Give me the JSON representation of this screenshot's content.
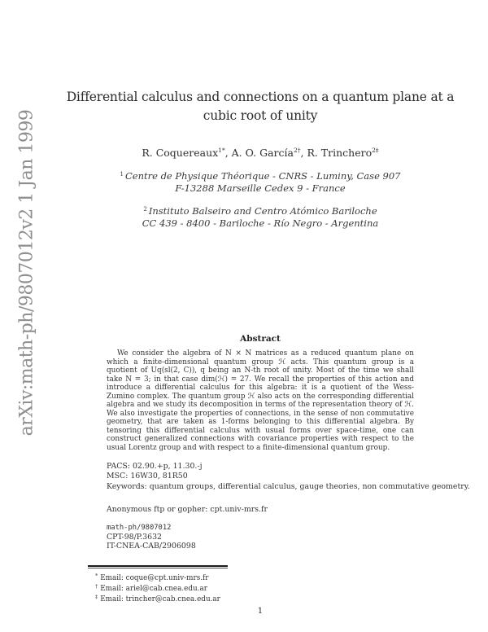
{
  "watermark": {
    "text": "arXiv:math-ph/9807012v2  1 Jan 1999",
    "color": "#8e8e8e"
  },
  "title": {
    "line1": "Differential calculus and connections on a quantum plane at a",
    "line2": "cubic root of unity"
  },
  "authors_sep": ", ",
  "authors": [
    {
      "name": "R. Coquereaux",
      "sup": "1*"
    },
    {
      "name": "A. O. García",
      "sup": "2†"
    },
    {
      "name": "R. Trinchero",
      "sup": "2‡"
    }
  ],
  "affiliations": [
    {
      "sup": "1",
      "line1": "Centre de Physique Théorique - CNRS - Luminy, Case 907",
      "line2": "F-13288 Marseille Cedex 9 - France"
    },
    {
      "sup": "2",
      "line1": "Instituto Balseiro and Centro Atómico Bariloche",
      "line2": "CC 439 - 8400 - Bariloche - Río Negro - Argentina"
    }
  ],
  "abstract": {
    "heading": "Abstract",
    "text": "We consider the algebra of N × N matrices as a reduced quantum plane on which a finite-dimensional quantum group ℋ acts. This quantum group is a quotient of Uq(sl(2, C)), q being an N-th root of unity. Most of the time we shall take N = 3; in that case dim(ℋ) = 27. We recall the properties of this action and introduce a differential calculus for this algebra: it is a quotient of the Wess-Zumino complex. The quantum group ℋ also acts on the corresponding differential algebra and we study its decomposition in terms of the representation theory of ℋ. We also investigate the properties of connections, in the sense of non commutative geometry, that are taken as 1-forms belonging to this differential algebra. By tensoring this differential calculus with usual forms over space-time, one can construct generalized connections with covariance properties with respect to the usual Lorentz group and with respect to a finite-dimensional quantum group."
  },
  "meta": {
    "pacs": "PACS: 02.90.+p, 11.30.-j",
    "msc": "MSC: 16W30, 81R50",
    "keywords": "Keywords: quantum groups, differential calculus, gauge theories, non commutative geometry."
  },
  "ftp_line": "Anonymous ftp or gopher: cpt.univ-mrs.fr",
  "report_numbers": [
    "math-ph/9807012",
    "CPT-98/P.3632",
    "IT-CNEA-CAB/2906098"
  ],
  "footnotes": [
    {
      "marker": "*",
      "text": "Email: coque@cpt.univ-mrs.fr"
    },
    {
      "marker": "†",
      "text": "Email: ariel@cab.cnea.edu.ar"
    },
    {
      "marker": "‡",
      "text": "Email: trincher@cab.cnea.edu.ar"
    }
  ],
  "page_number": "1"
}
